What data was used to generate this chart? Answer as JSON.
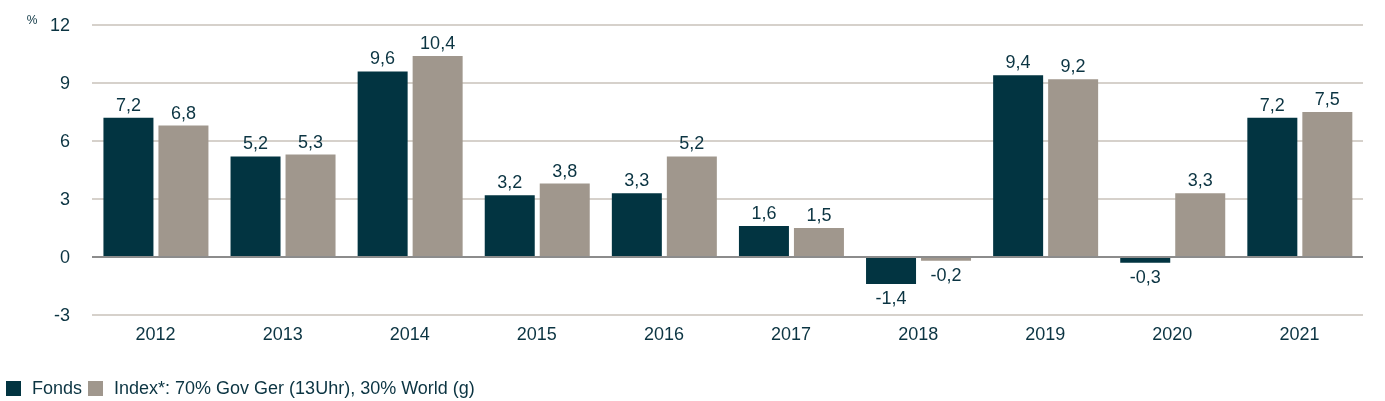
{
  "chart_data": {
    "type": "bar",
    "ylabel": "%",
    "categories": [
      "2012",
      "2013",
      "2014",
      "2015",
      "2016",
      "2017",
      "2018",
      "2019",
      "2020",
      "2021"
    ],
    "series": [
      {
        "name": "Fonds",
        "color": "#023441",
        "values": [
          7.2,
          5.2,
          9.6,
          3.2,
          3.3,
          1.6,
          -1.4,
          9.4,
          -0.3,
          7.2
        ],
        "value_labels": [
          "7,2",
          "5,2",
          "9,6",
          "3,2",
          "3,3",
          "1,6",
          "-1,4",
          "9,4",
          "-0,3",
          "7,2"
        ]
      },
      {
        "name": "Index*: 70% Gov Ger (13Uhr), 30% World (g)",
        "color": "#a0978d",
        "values": [
          6.8,
          5.3,
          10.4,
          3.8,
          5.2,
          1.5,
          -0.2,
          9.2,
          3.3,
          7.5
        ],
        "value_labels": [
          "6,8",
          "5,3",
          "10,4",
          "3,8",
          "5,2",
          "1,5",
          "-0,2",
          "9,2",
          "3,3",
          "7,5"
        ]
      }
    ],
    "ylim": [
      -3,
      12
    ],
    "yticks": [
      -3,
      0,
      3,
      6,
      9,
      12
    ],
    "grid": "y",
    "legend": "bottom left"
  }
}
